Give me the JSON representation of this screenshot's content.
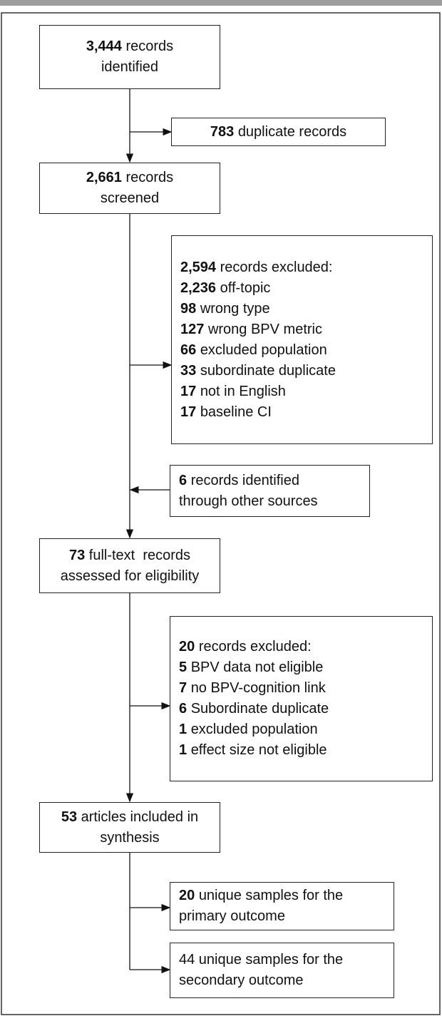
{
  "boxes": [
    {
      "lines": [
        {
          "number": "3,444",
          "text": "records"
        },
        {
          "text": "identified"
        }
      ]
    },
    {
      "lines": [
        {
          "number": "783",
          "text": "duplicate records"
        }
      ]
    },
    {
      "lines": [
        {
          "number": "2,661",
          "text": "records"
        },
        {
          "text": "screened"
        }
      ]
    },
    {
      "lines": [
        {
          "number": "2,594",
          "text": "records excluded:"
        },
        {
          "number": "2,236",
          "text": "off-topic"
        },
        {
          "number": "98",
          "text": "wrong type"
        },
        {
          "number": "127",
          "text": "wrong BPV metric"
        },
        {
          "number": "66",
          "text": "excluded population"
        },
        {
          "number": "33",
          "text": "subordinate duplicate"
        },
        {
          "number": "17",
          "text": "not in English"
        },
        {
          "number": "17",
          "text": "baseline CI"
        }
      ]
    },
    {
      "lines": [
        {
          "number": "6",
          "text": "records identified"
        },
        {
          "text": "through other sources"
        }
      ]
    },
    {
      "lines": [
        {
          "number": "73",
          "text": "full-text  records"
        },
        {
          "text": "assessed for eligibility"
        }
      ]
    },
    {
      "lines": [
        {
          "number": "20",
          "text": "records excluded:"
        },
        {
          "number": "5",
          "text": "BPV data not eligible"
        },
        {
          "number": "7",
          "text": "no BPV-cognition link"
        },
        {
          "number": "6",
          "text": "Subordinate duplicate"
        },
        {
          "number": "1",
          "text": "excluded population"
        },
        {
          "number": "1",
          "text": "effect size not eligible"
        }
      ]
    },
    {
      "lines": [
        {
          "number": "53",
          "text": "articles included in"
        },
        {
          "text": "synthesis"
        }
      ]
    },
    {
      "lines": [
        {
          "number": "20",
          "text": "unique samples for the"
        },
        {
          "text": "primary outcome"
        }
      ]
    },
    {
      "lines": [
        {
          "text": "44 unique samples for the"
        },
        {
          "text": "secondary outcome"
        }
      ]
    }
  ]
}
